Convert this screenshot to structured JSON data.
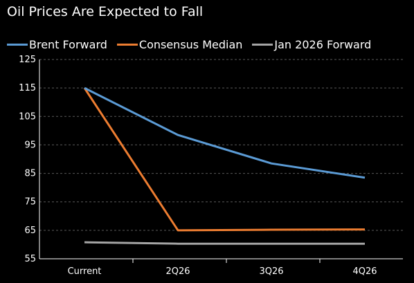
{
  "title": "Oil Prices Are Expected to Fall",
  "chart_data": {
    "type": "line",
    "title": "Oil Prices Are Expected to Fall",
    "categories": [
      "Current",
      "2Q26",
      "3Q26",
      "4Q26"
    ],
    "ylim": [
      55,
      125
    ],
    "yticks": [
      55,
      65,
      75,
      85,
      95,
      105,
      115,
      125
    ],
    "grid": true,
    "legend_position": "top-left",
    "series": [
      {
        "name": "Brent Forward",
        "color": "#5b9bd5",
        "values": [
          115,
          98.5,
          88.5,
          83.5
        ]
      },
      {
        "name": "Consensus Median",
        "color": "#ed7d31",
        "values": [
          115,
          65,
          65.2,
          65.3
        ]
      },
      {
        "name": "Jan 2026 Forward",
        "color": "#a5a5a5",
        "values": [
          60.8,
          60.3,
          60.3,
          60.3
        ]
      }
    ]
  }
}
